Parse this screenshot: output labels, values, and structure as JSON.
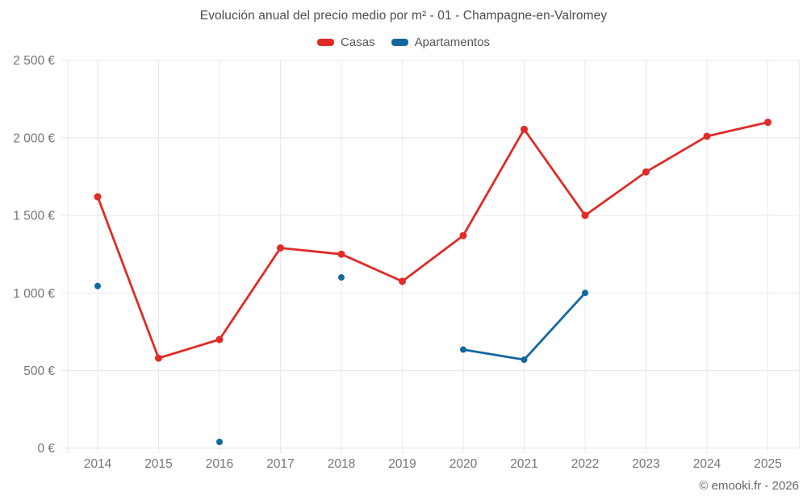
{
  "chart_data": {
    "type": "line",
    "title": "Evolución anual del precio medio por m² - 01 - Champagne-en-Valromey",
    "x_tick_labels": [
      "2014",
      "2015",
      "2016",
      "2017",
      "2018",
      "2019",
      "2020",
      "2021",
      "2022",
      "2023",
      "2024",
      "2025"
    ],
    "y_ticks": [
      0,
      500,
      1000,
      1500,
      2000,
      2500
    ],
    "y_tick_labels": [
      "0 €",
      "500 €",
      "1 000 €",
      "1 500 €",
      "2 000 €",
      "2 500 €"
    ],
    "ylim": [
      0,
      2500
    ],
    "grid": true,
    "legend_position": "top",
    "currency": "€",
    "series": [
      {
        "name": "Casas",
        "color": "#e02b27",
        "values": [
          1620,
          580,
          700,
          1290,
          1250,
          1075,
          1370,
          2055,
          1500,
          1780,
          2010,
          2100
        ]
      },
      {
        "name": "Apartamentos",
        "color": "#1368a1",
        "values": [
          1045,
          null,
          40,
          null,
          1100,
          null,
          635,
          570,
          1000,
          null,
          null,
          null
        ]
      }
    ]
  },
  "footer": {
    "copyright": "© emooki.fr - 2026"
  },
  "colors": {
    "grid": "#e9e9e9",
    "title_text": "#4d4d4d",
    "axis_text": "#757575",
    "legend_text": "#555555"
  }
}
